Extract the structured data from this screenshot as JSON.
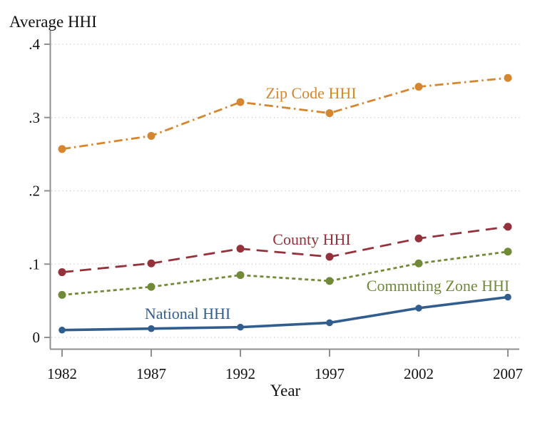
{
  "chart_data": {
    "type": "line",
    "title": "Average HHI",
    "xlabel": "Year",
    "ylabel": "Average HHI",
    "x": [
      1982,
      1987,
      1992,
      1997,
      2002,
      2007
    ],
    "xtick_labels": [
      "1982",
      "1987",
      "1992",
      "1997",
      "2002",
      "2007"
    ],
    "ylim": [
      0,
      0.4
    ],
    "ytick_values": [
      0,
      0.1,
      0.2,
      0.3,
      0.4
    ],
    "ytick_labels": [
      "0",
      ".1",
      ".2",
      ".3",
      ".4"
    ],
    "grid": "horizontal dotted gridlines at each y tick",
    "legend": "inline colored labels next to each line",
    "series": [
      {
        "name": "Zip Code HHI",
        "color": "#D6862E",
        "line_style": "dash-dot",
        "marker": "circle",
        "values": [
          0.257,
          0.275,
          0.321,
          0.306,
          0.342,
          0.354
        ]
      },
      {
        "name": "County HHI",
        "color": "#94313A",
        "line_style": "long-dash",
        "marker": "circle",
        "values": [
          0.089,
          0.101,
          0.121,
          0.11,
          0.135,
          0.151
        ]
      },
      {
        "name": "Commuting Zone HHI",
        "color": "#708A38",
        "line_style": "dotted",
        "marker": "circle",
        "values": [
          0.058,
          0.069,
          0.085,
          0.077,
          0.101,
          0.117
        ]
      },
      {
        "name": "National HHI",
        "color": "#315E8E",
        "line_style": "solid",
        "marker": "circle",
        "values": [
          0.01,
          0.012,
          0.014,
          0.02,
          0.04,
          0.055
        ]
      }
    ]
  },
  "colors": {
    "axis": "#909090",
    "gridline": "#C9C9C9",
    "text": "#111111",
    "background": "#FFFFFF"
  }
}
